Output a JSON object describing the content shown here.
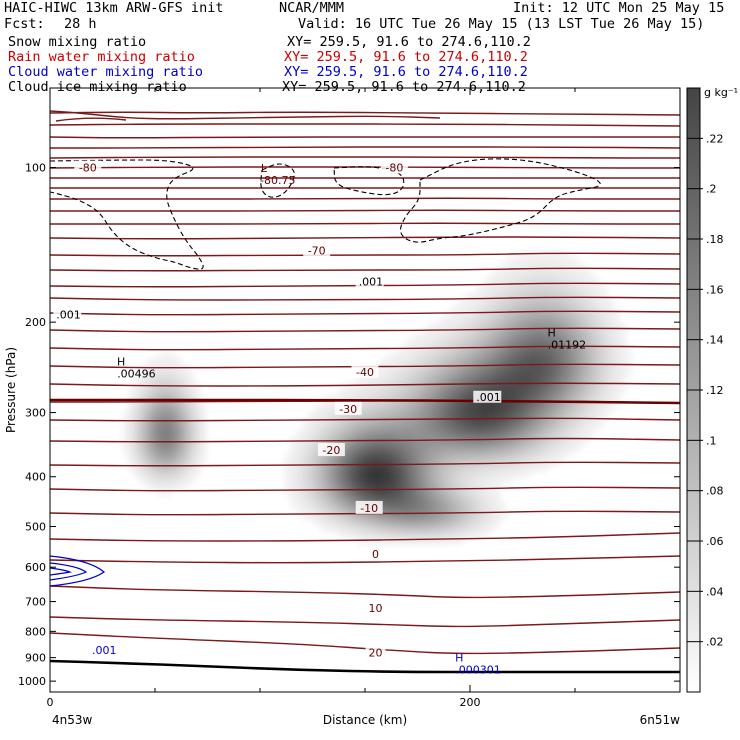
{
  "header": {
    "model": "HAIC-HIWC 13km ARW-GFS init",
    "org": "NCAR/MMM",
    "init": "Init: 12 UTC Mon 25 May 15",
    "fcst_label": "Fcst:",
    "fcst_value": "28 h",
    "valid": "Valid: 16 UTC Tue 26 May 15 (13 LST Tue 26 May 15)"
  },
  "fields": [
    {
      "name": "Snow mixing ratio",
      "xy": "XY= 259.5, 91.6 to 274.6,110.2",
      "color": "#000000"
    },
    {
      "name": "Rain water mixing ratio",
      "xy": "XY= 259.5, 91.6 to 274.6,110.2",
      "color": "#cc0000"
    },
    {
      "name": "Cloud water mixing ratio",
      "xy": "XY= 259.5, 91.6 to 274.6,110.2",
      "color": "#0000cc"
    },
    {
      "name": "Cloud ice mixing ratio",
      "xy": "XY= 259.5, 91.6 to 274.6,110.2",
      "color": "#000000"
    }
  ],
  "chart_data": {
    "type": "heatmap",
    "xlabel": "Distance (km)",
    "ylabel": "Pressure (hPa)",
    "xlim": [
      0,
      300
    ],
    "ylim": [
      1050,
      70
    ],
    "y_scale": "log",
    "x_ticks": [
      0,
      200
    ],
    "y_ticks": [
      100,
      200,
      300,
      400,
      500,
      600,
      700,
      800,
      900,
      1000
    ],
    "x_end_labels": {
      "left": "4n53w",
      "right": "6n51w"
    },
    "colorbar": {
      "units": "g kg⁻¹",
      "ticks": [
        ".02",
        ".04",
        ".06",
        ".08",
        ".1",
        ".12",
        ".14",
        ".16",
        ".18",
        ".2",
        ".22"
      ],
      "min": 0,
      "max": 0.24
    },
    "shading_blobs": [
      {
        "x": 155,
        "p": 395,
        "amp": 0.23,
        "sx": 18,
        "sp": 55
      },
      {
        "x": 205,
        "p": 300,
        "amp": 0.21,
        "sx": 22,
        "sp": 45
      },
      {
        "x": 235,
        "p": 235,
        "amp": 0.16,
        "sx": 18,
        "sp": 40
      },
      {
        "x": 55,
        "p": 330,
        "amp": 0.15,
        "sx": 9,
        "sp": 45
      },
      {
        "x": 180,
        "p": 470,
        "amp": 0.1,
        "sx": 18,
        "sp": 35
      }
    ],
    "temperature_contours": [
      {
        "label": "-80",
        "label_x": 18,
        "label_p": 100
      },
      {
        "label": "-80",
        "label_x": 164,
        "label_p": 100
      },
      {
        "label": "-70",
        "label_x": 127,
        "label_p": 145
      },
      {
        "label": "-40",
        "label_x": 150,
        "label_p": 250
      },
      {
        "label": "-30",
        "label_x": 142,
        "label_p": 295
      },
      {
        "label": "-20",
        "label_x": 134,
        "label_p": 355
      },
      {
        "label": "-10",
        "label_x": 152,
        "label_p": 460
      },
      {
        "label": "0",
        "label_x": 155,
        "label_p": 565
      },
      {
        "label": "10",
        "label_x": 155,
        "label_p": 720
      },
      {
        "label": "20",
        "label_x": 155,
        "label_p": 880
      }
    ],
    "cloud_ice_contour_labels": [
      {
        "label": ".001",
        "x": 3,
        "p": 195
      },
      {
        "label": ".001",
        "x": 147,
        "p": 168
      },
      {
        "label": ".001",
        "x": 203,
        "p": 282
      }
    ],
    "cloud_water_contour_label": {
      "label": ".001",
      "x": 20,
      "p": 877
    },
    "extrema": [
      {
        "kind": "L",
        "value": "-80.75",
        "x": 100,
        "p": 103,
        "color": "#660000"
      },
      {
        "kind": "H",
        "value": ".00496",
        "x": 32,
        "p": 245,
        "color": "#000000"
      },
      {
        "kind": "H",
        "value": ".01192",
        "x": 237,
        "p": 215,
        "color": "#000000"
      },
      {
        "kind": "H",
        "value": ".000301",
        "x": 193,
        "p": 925,
        "color": "#0000cc"
      }
    ]
  }
}
